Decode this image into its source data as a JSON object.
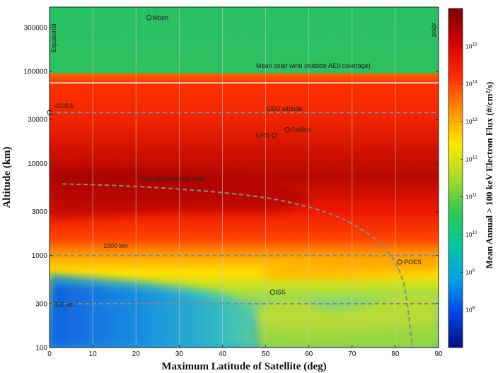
{
  "chart_data": {
    "type": "heatmap",
    "title": "",
    "xlabel": "Maximum Latitude of Satellite (deg)",
    "ylabel": "Altitude (km)",
    "xlim": [
      0,
      90
    ],
    "ylim": [
      100,
      500000
    ],
    "y_scale": "log",
    "x_ticks": [
      "0",
      "10",
      "20",
      "30",
      "40",
      "50",
      "60",
      "70",
      "80",
      "90"
    ],
    "y_ticks": [
      {
        "value": 100,
        "label": "100"
      },
      {
        "value": 300,
        "label": "300"
      },
      {
        "value": 1000,
        "label": "1000"
      },
      {
        "value": 3000,
        "label": "3000"
      },
      {
        "value": 10000,
        "label": "10000"
      },
      {
        "value": 30000,
        "label": "30000"
      },
      {
        "value": 100000,
        "label": "100000"
      },
      {
        "value": 300000,
        "label": "300000"
      }
    ],
    "grid": "vertical",
    "colorbar": {
      "label": "Mean Annual > 100 keV Electron Flux (#/cm²/s)",
      "scale": "log",
      "range": [
        10000000.0,
        1e+16
      ],
      "ticks": [
        {
          "value": 100000000.0,
          "base": "10",
          "exp": "8"
        },
        {
          "value": 1000000000.0,
          "base": "10",
          "exp": "9"
        },
        {
          "value": 10000000000.0,
          "base": "10",
          "exp": "10"
        },
        {
          "value": 100000000000.0,
          "base": "10",
          "exp": "11"
        },
        {
          "value": 1000000000000.0,
          "base": "10",
          "exp": "12"
        },
        {
          "value": 10000000000000.0,
          "base": "10",
          "exp": "13"
        },
        {
          "value": 100000000000000.0,
          "base": "10",
          "exp": "14"
        },
        {
          "value": 1000000000000000.0,
          "base": "10",
          "exp": "15"
        }
      ],
      "colors": [
        "#00107a",
        "#0044e6",
        "#00a0e6",
        "#00c8a0",
        "#2ec850",
        "#a8dc28",
        "#ffe800",
        "#ff9000",
        "#ff2a00",
        "#d40000",
        "#780000"
      ]
    },
    "regions": [
      {
        "label": "Mean solar wind (outside AE9 coverage)",
        "color": "#20c060",
        "from_altitude": 75000
      }
    ],
    "side_labels": {
      "left": "Equatorial",
      "right": "polar"
    },
    "reference_lines": [
      {
        "label": "GEO altitude",
        "altitude": 35786
      },
      {
        "label": "1000 km",
        "altitude": 1000
      },
      {
        "label": "300 km",
        "altitude": 300
      }
    ],
    "sun_synchronous_orbit": {
      "label": "Sun synchronous orbit",
      "points": [
        [
          3,
          6000
        ],
        [
          15,
          5800
        ],
        [
          30,
          5300
        ],
        [
          45,
          4600
        ],
        [
          55,
          3900
        ],
        [
          65,
          2900
        ],
        [
          72,
          2000
        ],
        [
          78,
          1200
        ],
        [
          81,
          700
        ],
        [
          82.5,
          400
        ],
        [
          83.5,
          150
        ],
        [
          84,
          100
        ]
      ]
    },
    "satellites": [
      {
        "label": "Moon",
        "lat": 23,
        "altitude": 384400
      },
      {
        "label": "GOES",
        "lat": 0,
        "altitude": 35786
      },
      {
        "label": "GPS",
        "lat": 52,
        "altitude": 20200
      },
      {
        "label": "Galileo",
        "lat": 55,
        "altitude": 23222
      },
      {
        "label": "POES",
        "lat": 81,
        "altitude": 850
      },
      {
        "label": "ISS",
        "lat": 51.6,
        "altitude": 400
      }
    ]
  }
}
